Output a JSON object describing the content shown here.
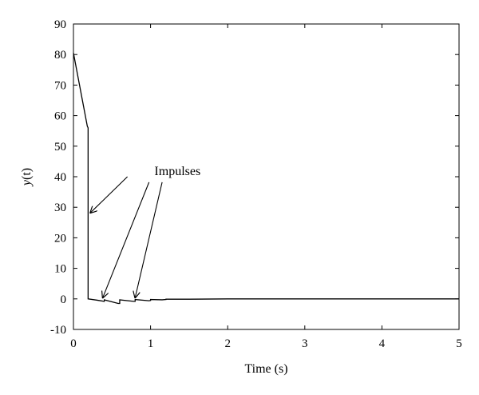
{
  "chart_data": {
    "type": "line",
    "title": "",
    "xlabel": "Time (s)",
    "ylabel_main": "y",
    "ylabel_arg": "(t)",
    "xlim": [
      0,
      5
    ],
    "ylim": [
      -10,
      90
    ],
    "xticks": [
      0,
      1,
      2,
      3,
      4,
      5
    ],
    "yticks": [
      -10,
      0,
      10,
      20,
      30,
      40,
      50,
      60,
      70,
      80,
      90
    ],
    "grid": false,
    "legend": "none",
    "series": [
      {
        "color": "#000000",
        "x": [
          0,
          0.18,
          0.19,
          0.19,
          0.3,
          0.4,
          0.4,
          0.58,
          0.6,
          0.6,
          0.78,
          0.8,
          0.8,
          0.98,
          1.0,
          1.0,
          1.15,
          1.2,
          1.2,
          1.5,
          2.0,
          3.0,
          4.0,
          5.0
        ],
        "y": [
          80.5,
          56.5,
          56.0,
          0.0,
          -0.4,
          -0.8,
          -0.3,
          -1.5,
          -1.5,
          -0.3,
          -0.8,
          -0.8,
          -0.2,
          -0.6,
          -0.5,
          -0.2,
          -0.3,
          -0.2,
          -0.1,
          -0.1,
          0.0,
          0.0,
          0.0,
          0.0
        ]
      }
    ],
    "annotations": [
      {
        "text": "Impulses",
        "anchor": [
          1.05,
          40.5
        ],
        "arrows": [
          {
            "from": [
              0.7,
              40.0
            ],
            "to": [
              0.22,
              28.2
            ]
          },
          {
            "from": [
              0.98,
              38.2
            ],
            "to": [
              0.38,
              0.4
            ]
          },
          {
            "from": [
              1.15,
              38.2
            ],
            "to": [
              0.8,
              0.4
            ]
          }
        ]
      }
    ]
  }
}
